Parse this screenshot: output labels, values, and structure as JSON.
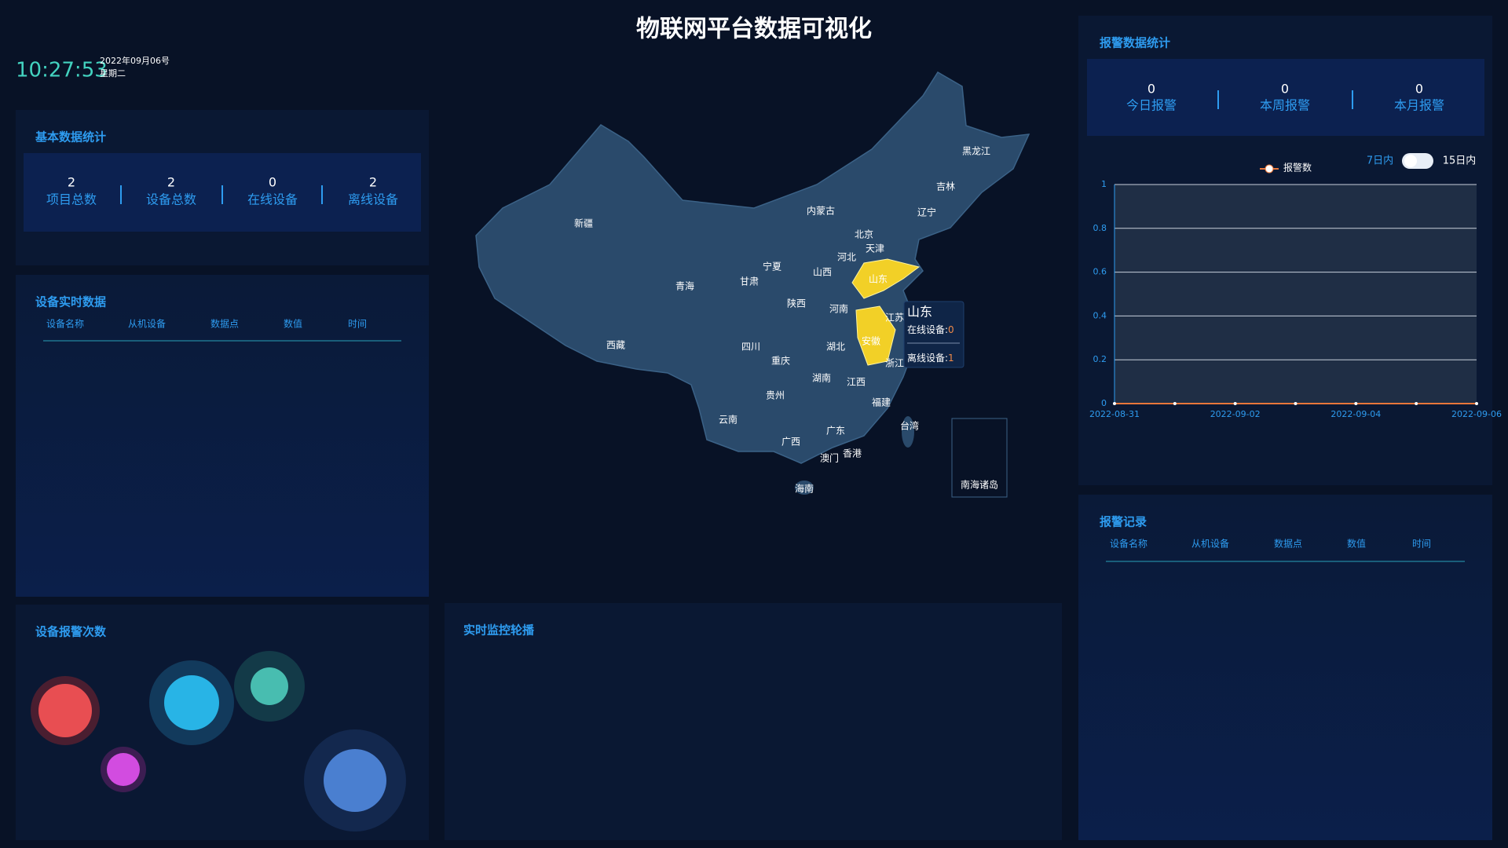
{
  "header": {
    "title": "物联网平台数据可视化"
  },
  "clock": {
    "time": "10:27:53",
    "date": "2022年09月06号",
    "weekday": "星期二"
  },
  "basic_stats": {
    "title": "基本数据统计",
    "items": [
      {
        "value": 2,
        "label": "项目总数"
      },
      {
        "value": 2,
        "label": "设备总数"
      },
      {
        "value": 0,
        "label": "在线设备"
      },
      {
        "value": 2,
        "label": "离线设备"
      }
    ]
  },
  "realtime_data": {
    "title": "设备实时数据",
    "columns": [
      "设备名称",
      "从机设备",
      "数据点",
      "数值",
      "时间"
    ]
  },
  "alarm_counts": {
    "title": "设备报警次数"
  },
  "map": {
    "labels": [
      "新疆",
      "西藏",
      "青海",
      "甘肃",
      "宁夏",
      "内蒙古",
      "黑龙江",
      "吉林",
      "辽宁",
      "北京",
      "天津",
      "河北",
      "山西",
      "陕西",
      "河南",
      "山东",
      "江苏",
      "安徽",
      "湖北",
      "四川",
      "重庆",
      "湖南",
      "江西",
      "浙江",
      "福建",
      "贵州",
      "云南",
      "广西",
      "广东",
      "香港",
      "澳门",
      "海南",
      "台湾",
      "南海诸岛"
    ],
    "tooltip": {
      "name": "山东",
      "online_label": "在线设备:",
      "online": 0,
      "offline_label": "离线设备:",
      "offline": 1
    }
  },
  "monitor": {
    "title": "实时监控轮播"
  },
  "alarm_stats": {
    "title": "报警数据统计",
    "items": [
      {
        "value": 0,
        "label": "今日报警"
      },
      {
        "value": 0,
        "label": "本周报警"
      },
      {
        "value": 0,
        "label": "本月报警"
      }
    ]
  },
  "alarm_chart": {
    "type": "line",
    "toggle_left": "7日内",
    "toggle_right": "15日内",
    "categories": [
      "2022-08-31",
      null,
      "2022-09-02",
      null,
      "2022-09-04",
      null,
      "2022-09-06"
    ],
    "series": [
      {
        "name": "报警数",
        "color": "#e8763a",
        "values": [
          0,
          0,
          0,
          0,
          0,
          0,
          0
        ]
      }
    ],
    "ylim": [
      0,
      1
    ],
    "yticks": [
      0,
      0.2,
      0.4,
      0.6,
      0.8,
      1
    ],
    "grid": true
  },
  "alarm_records": {
    "title": "报警记录",
    "columns": [
      "设备名称",
      "从机设备",
      "数据点",
      "数值",
      "时间"
    ]
  }
}
